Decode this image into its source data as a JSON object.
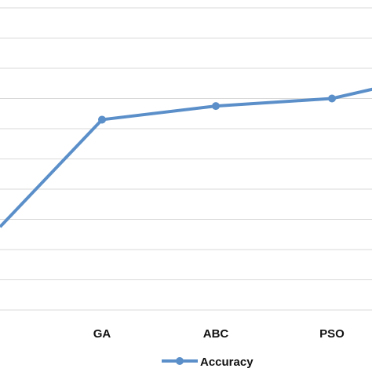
{
  "chart_data": {
    "type": "line",
    "categories": [
      "",
      "GA",
      "ABC",
      "PSO",
      ""
    ],
    "series": [
      {
        "name": "Accuracy",
        "values": [
          79.5,
          86.6,
          87.5,
          88.0,
          88.8
        ]
      }
    ],
    "ylim": [
      74,
      94
    ],
    "grid": true,
    "legend": "bottom",
    "colors": {
      "series": "#5B8FC9",
      "grid": "#D9D9D9"
    }
  }
}
